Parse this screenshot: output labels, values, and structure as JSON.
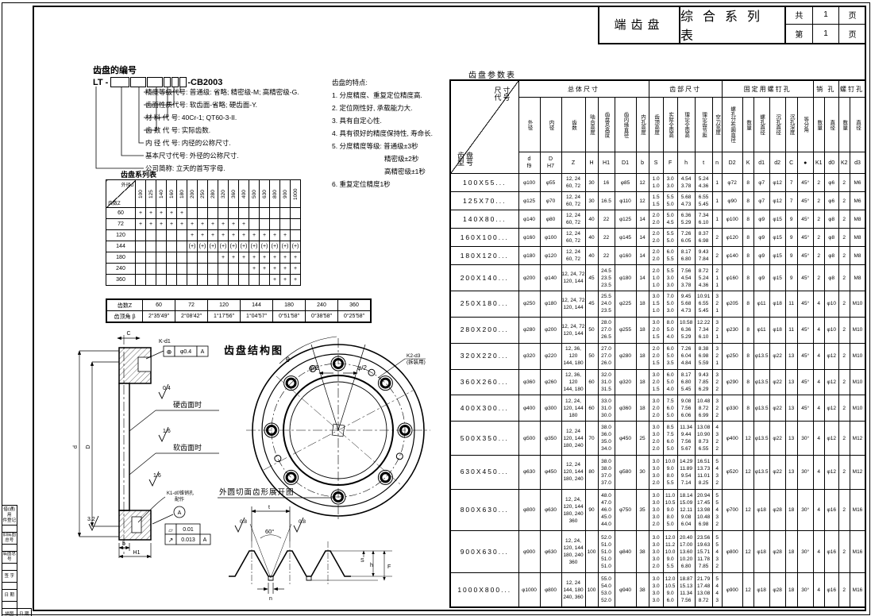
{
  "colors": {
    "ink": "#000000",
    "paper": "#ffffff"
  },
  "sheet": {
    "part_name": "端齿盘",
    "series_title": "综合系列表",
    "pages": {
      "total_label": "共",
      "total": "1",
      "unit": "页",
      "current_label": "第",
      "current": "1"
    }
  },
  "left_margin": {
    "rows": [
      "借(通)用\n件登记",
      "",
      "旧底图总号",
      "",
      "底图总号",
      "",
      "签  字",
      "",
      "日  期",
      ""
    ],
    "bottom_left": "描图",
    "bottom_right": "日 期"
  },
  "numbering": {
    "title": "齿盘的编号",
    "code_prefix": "LT -",
    "code_suffix": "-CB2003",
    "items": [
      "精度等级代号: 普通级: 省略; 精密级-M; 高精密级-G.",
      "齿面性质代号: 软齿面-省略; 硬齿面-Y.",
      "材 料 代 号: 40Cr-1; QT60-3-II.",
      "齿 数 代 号: 实际齿数.",
      "内 径 代 号: 内径的公称尺寸.",
      "基本尺寸代号: 外径的公称尺寸.",
      "公司简称: 立天的首写字母."
    ]
  },
  "features": {
    "title": "齿盘的特点:",
    "items": [
      "1. 分度精度、重复定位精度高.",
      "2. 定位刚性好, 承载能力大.",
      "3. 具有自定心性.",
      "4. 具有很好的精度保持性, 寿命长.",
      "5. 分度精度等级: 普通级±3秒"
    ],
    "sub_items": [
      "精密级±2秒",
      "高精密级±1秒"
    ],
    "last_item": "6. 重复定位精度1秒"
  },
  "series_table": {
    "title": "齿盘系列表",
    "corner_top": "外径d",
    "corner_bottom": "齿数Z",
    "columns": [
      "100",
      "125",
      "140",
      "160",
      "180",
      "200",
      "250",
      "280",
      "320",
      "360",
      "400",
      "500",
      "630",
      "800",
      "900",
      "1000"
    ],
    "rows": [
      {
        "z": "60",
        "marks": [
          "+",
          "+",
          "+",
          "+",
          "+",
          "",
          "",
          "",
          "",
          "",
          "",
          "",
          "",
          "",
          "",
          ""
        ]
      },
      {
        "z": "72",
        "marks": [
          "+",
          "+",
          "+",
          "+",
          "+",
          "+",
          "+",
          "+",
          "+",
          "+",
          "+",
          "",
          "",
          "",
          "",
          ""
        ]
      },
      {
        "z": "120",
        "marks": [
          "",
          "",
          "",
          "",
          "",
          "+",
          "+",
          "+",
          "+",
          "+",
          "+",
          "+",
          "+",
          "+",
          "+",
          ""
        ]
      },
      {
        "z": "144",
        "marks": [
          "",
          "",
          "",
          "",
          "",
          "(+)",
          "(+)",
          "(+)",
          "(+)",
          "(+)",
          "(+)",
          "(+)",
          "(+)",
          "(+)",
          "(+)",
          "(+)"
        ]
      },
      {
        "z": "180",
        "marks": [
          "",
          "",
          "",
          "",
          "",
          "",
          "",
          "",
          "+",
          "+",
          "+",
          "+",
          "+",
          "+",
          "+",
          "+"
        ]
      },
      {
        "z": "240",
        "marks": [
          "",
          "",
          "",
          "",
          "",
          "",
          "",
          "",
          "",
          "",
          "",
          "+",
          "+",
          "+",
          "+",
          "+"
        ]
      },
      {
        "z": "360",
        "marks": [
          "",
          "",
          "",
          "",
          "",
          "",
          "",
          "",
          "",
          "",
          "",
          "",
          "",
          "+",
          "+",
          "+"
        ]
      }
    ]
  },
  "angle_table": {
    "row1_label": "齿数Z",
    "row2_label": "齿顶角 β",
    "columns": [
      "60",
      "72",
      "120",
      "144",
      "180",
      "240",
      "360"
    ],
    "values": [
      "2°35′49″",
      "2°08′42″",
      "1°17′56″",
      "1°04′57″",
      "0°51′58″",
      "0°38′58″",
      "0°25′58″"
    ]
  },
  "structure_fig": {
    "title": "齿盘结构图",
    "angle_theta": "θ",
    "angle_half_left": "φ/2",
    "angle_half_right": "φ/2",
    "callout_line1": "K2-d3",
    "callout_line2": "(拆装用)"
  },
  "section_fig": {
    "callout_k_d1": "K-d1",
    "tol_position": {
      "sym": "⊕",
      "val": "φ0.4",
      "datum": "A"
    },
    "rough_hard": "0.4",
    "hard_label": "硬齿面时",
    "rough_soft": "1.6",
    "soft_label": "软齿面时",
    "rough_mid": "1.6",
    "rough_bottom": "3.2",
    "pin_label_line1": "K1-d0锥销孔",
    "pin_label_line2": "配作",
    "datum_label": "A",
    "tol_flat": {
      "sym": "▱",
      "val": "0.01"
    },
    "tol_runout": {
      "sym": "↗",
      "val": "0.013",
      "datum": "A"
    },
    "dim_d": "d",
    "dim_D": "D",
    "dim_D1": "D1",
    "dim_C": "C",
    "dim_b": "b",
    "dim_H1": "H1"
  },
  "profile_fig": {
    "title": "外圆切面齿形展开图",
    "angle": "60°",
    "rough_left": "0.8",
    "rough_right": "0.8",
    "dim_t": "t",
    "dim_S": "S",
    "dim_h": "h",
    "dim_F": "F",
    "dim_n": "n"
  },
  "param_table": {
    "title": "齿盘参数表",
    "corner_top": "尺寸\n代号",
    "corner_bottom": "齿盘\n型号",
    "groups": [
      {
        "label": "总体尺寸",
        "span": 7
      },
      {
        "label": "齿部尺寸",
        "span": 5
      },
      {
        "label": "固定用螺钉孔",
        "span": 6
      },
      {
        "label": "销 孔",
        "span": 2
      },
      {
        "label": "螺钉孔",
        "span": 2
      }
    ],
    "columns": [
      {
        "name": "外径",
        "sym": "d\nf9"
      },
      {
        "name": "内径",
        "sym": "D\nH7"
      },
      {
        "name": "齿数",
        "sym": "Z"
      },
      {
        "name": "啮合高度",
        "sym": "H"
      },
      {
        "name": "齿盘总高度",
        "sym": "H1"
      },
      {
        "name": "齿内缘直径",
        "sym": "D1"
      },
      {
        "name": "内孔高度",
        "sym": "b"
      },
      {
        "name": "齿顶高度",
        "sym": "S"
      },
      {
        "name": "实际全齿高",
        "sym": "F"
      },
      {
        "name": "理论全齿高",
        "sym": "h"
      },
      {
        "name": "理论齿节距",
        "sym": "t"
      },
      {
        "name": "空刀宽度",
        "sym": "n"
      },
      {
        "name": "螺孔分布圆直径",
        "sym": "D2"
      },
      {
        "name": "数量",
        "sym": "K"
      },
      {
        "name": "螺孔直径",
        "sym": "d1"
      },
      {
        "name": "沉孔直径",
        "sym": "d2"
      },
      {
        "name": "沉孔深度",
        "sym": "C"
      },
      {
        "name": "等分角",
        "sym": "●"
      },
      {
        "name": "数量",
        "sym": "K1"
      },
      {
        "name": "直径",
        "sym": "d0"
      },
      {
        "name": "数量",
        "sym": "K2"
      },
      {
        "name": "直径",
        "sym": "d3"
      }
    ],
    "rows": [
      [
        "100X55...",
        "φ100",
        "φ55",
        "12, 24\n60, 72",
        "30",
        "16",
        "φ85",
        "12",
        "1.0\n1.0",
        "3.0\n3.0",
        "4.54\n3.78",
        "5.24\n4.36",
        "1",
        "φ72",
        "8",
        "φ7",
        "φ12",
        "7",
        "45°",
        "2",
        "φ6",
        "2",
        "M6"
      ],
      [
        "125X70...",
        "φ125",
        "φ70",
        "12, 24\n60, 72",
        "30",
        "16.5",
        "φ110",
        "12",
        "1.5\n1.5",
        "5.5\n5.0",
        "5.68\n4.73",
        "6.55\n5.45",
        "1",
        "φ90",
        "8",
        "φ7",
        "φ12",
        "7",
        "45°",
        "2",
        "φ6",
        "2",
        "M6"
      ],
      [
        "140X80...",
        "φ140",
        "φ80",
        "12, 24\n60, 72",
        "40",
        "22",
        "φ125",
        "14",
        "2.0\n2.0",
        "5.0\n4.5",
        "6.36\n5.29",
        "7.34\n6.10",
        "1",
        "φ100",
        "8",
        "φ9",
        "φ15",
        "9",
        "45°",
        "2",
        "φ8",
        "2",
        "M8"
      ],
      [
        "160X100...",
        "φ160",
        "φ100",
        "12, 24\n60, 72",
        "40",
        "22",
        "φ145",
        "14",
        "2.0\n2.0",
        "5.5\n5.0",
        "7.26\n6.05",
        "8.37\n6.98",
        "2",
        "φ120",
        "8",
        "φ9",
        "φ15",
        "9",
        "45°",
        "2",
        "φ8",
        "2",
        "M8"
      ],
      [
        "180X120...",
        "φ180",
        "φ120",
        "12, 24\n60, 72",
        "40",
        "22",
        "φ160",
        "14",
        "2.0\n2.0",
        "6.0\n5.5",
        "8.17\n6.80",
        "9.43\n7.84",
        "2",
        "φ140",
        "8",
        "φ9",
        "φ15",
        "9",
        "45°",
        "2",
        "φ8",
        "2",
        "M8"
      ],
      [
        "200X140...",
        "φ200",
        "φ140",
        "12, 24, 72\n120, 144",
        "45",
        "24.5\n23.5\n23.5",
        "φ180",
        "14",
        "2.0\n1.0\n1.0",
        "5.5\n3.0\n3.0",
        "7.56\n4.54\n3.78",
        "8.72\n5.24\n4.36",
        "2\n1\n1",
        "φ160",
        "8",
        "φ9",
        "φ15",
        "9",
        "45°",
        "2",
        "φ8",
        "2",
        "M8"
      ],
      [
        "250X180...",
        "φ250",
        "φ180",
        "12, 24, 72\n120, 144",
        "45",
        "25.5\n24.0\n23.5",
        "φ225",
        "18",
        "3.0\n1.5\n1.0",
        "7.0\n5.0\n3.0",
        "9.45\n5.68\n4.73",
        "10.91\n6.55\n5.45",
        "3\n2\n1",
        "φ205",
        "8",
        "φ11",
        "φ18",
        "11",
        "45°",
        "4",
        "φ10",
        "2",
        "M10"
      ],
      [
        "280X200...",
        "φ280",
        "φ200",
        "12, 24, 72\n120, 144",
        "50",
        "28.0\n27.0\n26.5",
        "φ255",
        "18",
        "3.0\n2.0\n1.5",
        "8.0\n5.0\n4.0",
        "10.58\n6.36\n5.29",
        "12.22\n7.34\n6.10",
        "3\n2\n1",
        "φ230",
        "8",
        "φ11",
        "φ18",
        "11",
        "45°",
        "4",
        "φ10",
        "2",
        "M10"
      ],
      [
        "320X220...",
        "φ320",
        "φ220",
        "12, 36, 120\n144, 180",
        "50",
        "27.0\n27.0\n26.0",
        "φ280",
        "18",
        "2.0\n2.0\n1.5",
        "6.0\n5.0\n3.5",
        "7.26\n6.04\n4.84",
        "8.38\n6.98\n5.59",
        "3\n2\n1",
        "φ250",
        "8",
        "φ13.5",
        "φ22",
        "13",
        "45°",
        "4",
        "φ12",
        "2",
        "M10"
      ],
      [
        "360X260...",
        "φ360",
        "φ260",
        "12, 36, 120\n144, 180",
        "60",
        "32.0\n31.0\n31.5",
        "φ320",
        "18",
        "3.0\n2.0\n1.5",
        "6.0\n5.0\n4.0",
        "8.17\n6.80\n5.45",
        "9.43\n7.85\n6.29",
        "3\n2\n2",
        "φ290",
        "8",
        "φ13.5",
        "φ22",
        "13",
        "45°",
        "4",
        "φ12",
        "2",
        "M10"
      ],
      [
        "400X300...",
        "φ400",
        "φ300",
        "12, 24,\n120, 144\n180",
        "60",
        "33.0\n31.0\n30.0",
        "φ360",
        "18",
        "3.0\n2.0\n2.0",
        "7.5\n6.0\n5.0",
        "9.08\n7.56\n6.06",
        "10.48\n8.72\n6.99",
        "3\n2\n2",
        "φ330",
        "8",
        "φ13.5",
        "φ22",
        "13",
        "45°",
        "4",
        "φ12",
        "2",
        "M10"
      ],
      [
        "500X350...",
        "φ500",
        "φ350",
        "12, 24\n120, 144\n180, 240",
        "70",
        "38.0\n36.0\n35.0\n34.0",
        "φ450",
        "25",
        "3.0\n3.0\n2.0\n2.0",
        "8.5\n7.5\n6.0\n5.0",
        "11.34\n9.44\n7.56\n5.67",
        "13.08\n10.90\n8.73\n6.55",
        "4\n3\n2\n2",
        "φ400",
        "12",
        "φ13.5",
        "φ22",
        "13",
        "30°",
        "4",
        "φ12",
        "2",
        "M12"
      ],
      [
        "630X450...",
        "φ630",
        "φ450",
        "12, 24\n120, 144\n180, 240",
        "80",
        "38.0\n38.0\n37.0\n37.0",
        "φ580",
        "30",
        "3.0\n3.0\n3.0\n2.0",
        "10.0\n9.0\n8.0\n5.5",
        "14.29\n11.89\n9.54\n7.14",
        "16.51\n13.73\n11.01\n8.25",
        "5\n4\n3\n2",
        "φ520",
        "12",
        "φ13.5",
        "φ22",
        "13",
        "30°",
        "4",
        "φ12",
        "2",
        "M12"
      ],
      [
        "800X630...",
        "φ800",
        "φ630",
        "12, 24,\n120, 144\n180, 240\n360",
        "90",
        "48.0\n47.0\n46.0\n45.0\n44.0",
        "φ750",
        "35",
        "3.0\n3.0\n3.0\n3.0\n2.0",
        "11.0\n10.5\n9.0\n8.0\n5.0",
        "18.14\n15.09\n12.11\n9.08\n6.04",
        "20.94\n17.45\n13.98\n10.48\n6.98",
        "5\n5\n4\n3\n2",
        "φ700",
        "12",
        "φ18",
        "φ28",
        "18",
        "30°",
        "4",
        "φ16",
        "2",
        "M16"
      ],
      [
        "900X630...",
        "φ900",
        "φ630",
        "12, 24,\n120, 144\n180, 240\n360",
        "100",
        "52.0\n51.0\n51.0\n51.0\n51.0",
        "φ840",
        "38",
        "3.0\n3.0\n3.0\n3.0\n2.0",
        "12.0\n11.2\n10.0\n9.0\n5.5",
        "20.40\n17.00\n13.60\n10.20\n6.80",
        "23.56\n19.63\n15.71\n11.78\n7.85",
        "5\n5\n4\n3\n2",
        "φ800",
        "12",
        "φ18",
        "φ28",
        "18",
        "30°",
        "4",
        "φ16",
        "2",
        "M16"
      ],
      [
        "1000X800...",
        "φ1000",
        "φ800",
        "12, 24\n144, 180\n240, 360",
        "100",
        "55.0\n54.0\n53.0\n52.0",
        "φ940",
        "38",
        "3.0\n3.0\n3.0\n3.0",
        "12.0\n10.5\n9.0\n6.0",
        "18.87\n15.13\n11.34\n7.56",
        "21.79\n17.48\n13.08\n8.72",
        "5\n4\n4\n3",
        "φ900",
        "12",
        "φ18",
        "φ28",
        "18",
        "30°",
        "4",
        "φ16",
        "2",
        "M16"
      ]
    ]
  }
}
